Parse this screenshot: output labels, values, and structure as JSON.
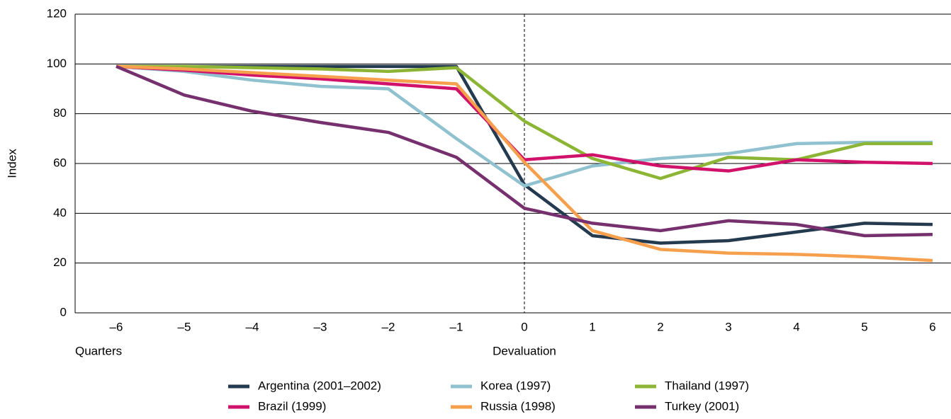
{
  "chart_data": {
    "type": "line",
    "y_label": "Index",
    "x_label": "Quarters",
    "annotation": "Devaluation",
    "vline": "0",
    "categories": [
      "–6",
      "–5",
      "–4",
      "–3",
      "–2",
      "–1",
      "0",
      "1",
      "2",
      "3",
      "4",
      "5",
      "6"
    ],
    "ylim": [
      0,
      120
    ],
    "yticks": [
      0,
      20,
      40,
      60,
      80,
      100,
      120
    ],
    "grid": true,
    "series": [
      {
        "name": "Argentina (2001–2002)",
        "color": "#243a4f",
        "values": [
          99,
          99,
          99,
          99,
          99,
          99,
          51.5,
          31,
          28,
          29,
          32.5,
          36,
          35.5
        ]
      },
      {
        "name": "Korea (1997)",
        "color": "#8fc1cf",
        "values": [
          99,
          97,
          93.5,
          91,
          90,
          70,
          51,
          59,
          62,
          64,
          68,
          68.5,
          68.5
        ]
      },
      {
        "name": "Thailand (1997)",
        "color": "#8db535",
        "values": [
          99,
          99,
          98.5,
          98,
          97,
          98.5,
          77,
          62,
          54,
          62.5,
          61.5,
          68,
          68
        ]
      },
      {
        "name": "Brazil (1999)",
        "color": "#d1126a",
        "values": [
          99,
          97.5,
          95.5,
          94,
          92,
          90,
          61.5,
          63.5,
          59,
          57,
          61.5,
          60.5,
          60
        ]
      },
      {
        "name": "Russia (1998)",
        "color": "#f6a04d",
        "values": [
          99,
          98,
          96.5,
          95,
          93.5,
          92,
          60.5,
          33,
          25.5,
          24,
          23.5,
          22.5,
          21
        ]
      },
      {
        "name": "Turkey (2001)",
        "color": "#76306e",
        "values": [
          99,
          87.5,
          81,
          76.5,
          72.5,
          62.5,
          42,
          36,
          33,
          37,
          35.5,
          31,
          31.5
        ]
      }
    ]
  }
}
